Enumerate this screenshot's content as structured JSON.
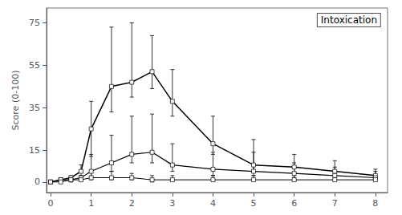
{
  "chart_data": {
    "type": "line",
    "title": "Intoxication",
    "ylabel": "Score (0-100)",
    "marker": "square",
    "line_style": "solid",
    "grid": false,
    "xlim": [
      -0.1,
      8.3
    ],
    "xticks": [
      0,
      1,
      2,
      3,
      4,
      5,
      6,
      7,
      8
    ],
    "ylim": [
      -5,
      82
    ],
    "yticks": [
      0,
      15,
      35,
      55,
      75
    ],
    "series": [
      {
        "color": "#000000",
        "x": [
          0,
          0.25,
          0.5,
          0.75,
          1.0,
          1.5,
          2.0,
          2.5,
          3.0,
          4.0,
          5.0,
          6.0,
          7.0,
          8.0
        ],
        "values": [
          0,
          1,
          2,
          5,
          25,
          45,
          47,
          52,
          38,
          18,
          8,
          7,
          5,
          3
        ],
        "yerr_lo": [
          0,
          1,
          1,
          3,
          13,
          12,
          7,
          8,
          7,
          5,
          3,
          3,
          2,
          2
        ],
        "yerr_hi": [
          0,
          1,
          1,
          3,
          13,
          28,
          28,
          17,
          15,
          13,
          12,
          6,
          5,
          3
        ]
      },
      {
        "color": "#000000",
        "x": [
          0,
          0.25,
          0.5,
          0.75,
          1.0,
          1.5,
          2.0,
          2.5,
          3.0,
          4.0,
          5.0,
          6.0,
          7.0,
          8.0
        ],
        "values": [
          0,
          1,
          1,
          2,
          5,
          9,
          13,
          14,
          8,
          6,
          5,
          4,
          3,
          2
        ],
        "yerr_lo": [
          0,
          1,
          1,
          1,
          3,
          4,
          4,
          5,
          3,
          3,
          2,
          2,
          2,
          1
        ],
        "yerr_hi": [
          0,
          1,
          1,
          1,
          8,
          13,
          18,
          18,
          10,
          8,
          9,
          5,
          4,
          3
        ]
      },
      {
        "color": "#000000",
        "x": [
          0,
          0.25,
          0.5,
          0.75,
          1.0,
          1.5,
          2.0,
          2.5,
          3.0,
          4.0,
          5.0,
          6.0,
          7.0,
          8.0
        ],
        "values": [
          0,
          0,
          1,
          1,
          2,
          2,
          2,
          1,
          1,
          1,
          1,
          1,
          1,
          1
        ],
        "yerr_lo": [
          0,
          0,
          0,
          0,
          1,
          1,
          1,
          1,
          0,
          0,
          0,
          0,
          0,
          0
        ],
        "yerr_hi": [
          0,
          1,
          1,
          2,
          3,
          3,
          2,
          2,
          2,
          2,
          2,
          2,
          2,
          1
        ]
      }
    ]
  }
}
